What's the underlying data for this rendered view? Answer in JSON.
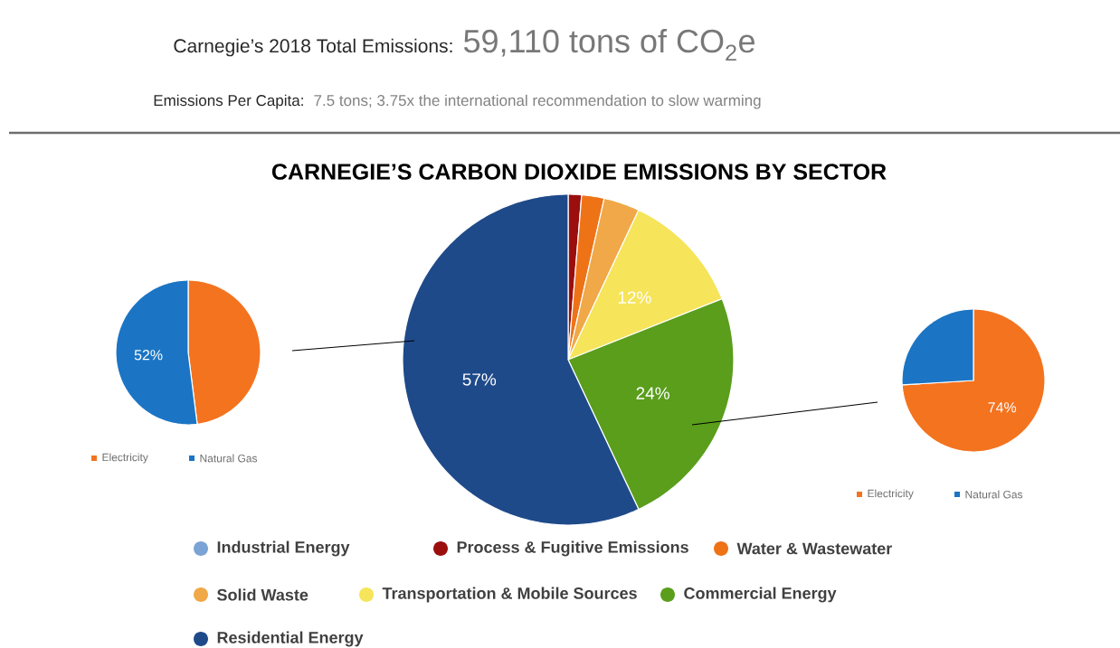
{
  "chart_data": [
    {
      "type": "pie",
      "title": "CARNEGIE’S CARBON DIOXIDE EMISSIONS BY SECTOR",
      "annotations": [
        "Carnegie’s 2018 Total Emissions:",
        "59,110 tons of CO$_{2}$e",
        "Emissions Per Capita:",
        "7.5 tons; 3.75x the international recommendation to slow warming"
      ],
      "categories": [
        "Industrial Energy",
        "Process & Fugitive Emissions",
        "Water & Wastewater",
        "Solid Waste",
        "Transportation & Mobile Sources",
        "Commercial Energy",
        "Residential Energy"
      ],
      "values": [
        0,
        1.3,
        2.2,
        3.5,
        12,
        24,
        57
      ],
      "colors": [
        "#7ba3d6",
        "#9b0e0e",
        "#ee7317",
        "#f0a848",
        "#f6e45a",
        "#5a9e1c",
        "#1f4a8a"
      ],
      "value_labels": [
        null,
        null,
        null,
        null,
        "12%",
        "24%",
        "57%"
      ],
      "legend": "bottom"
    },
    {
      "type": "pie",
      "categories": [
        "Electricity",
        "Natural Gas"
      ],
      "values": [
        48,
        52
      ],
      "colors": [
        "#f4731f",
        "#1b75c4"
      ],
      "value_labels": [
        null,
        "52%"
      ],
      "legend": "bottom"
    },
    {
      "type": "pie",
      "categories": [
        "Electricity",
        "Natural Gas"
      ],
      "values": [
        74,
        26
      ],
      "colors": [
        "#f4731f",
        "#1b75c4"
      ],
      "value_labels": [
        "74%",
        null
      ],
      "legend": "bottom"
    }
  ]
}
